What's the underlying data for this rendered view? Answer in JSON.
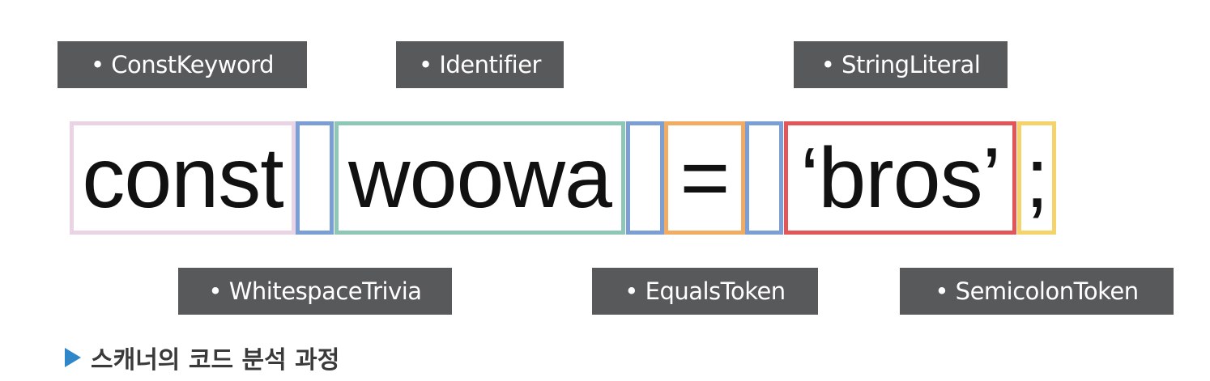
{
  "labels_top": [
    "• ConstKeyword",
    "• Identifier",
    "• StringLiteral"
  ],
  "labels_bottom": [
    "• WhitespaceTrivia",
    "• EqualsToken",
    "• SemicolonToken"
  ],
  "tokens": [
    {
      "text": "const",
      "color": "#e9d3e4",
      "kind": "ConstKeyword"
    },
    {
      "text": "",
      "color": "#7b9fd4",
      "kind": "WhitespaceTrivia"
    },
    {
      "text": "woowa",
      "color": "#8ec7b6",
      "kind": "Identifier"
    },
    {
      "text": "",
      "color": "#7b9fd4",
      "kind": "WhitespaceTrivia"
    },
    {
      "text": "=",
      "color": "#f2ab63",
      "kind": "EqualsToken"
    },
    {
      "text": "",
      "color": "#7b9fd4",
      "kind": "WhitespaceTrivia"
    },
    {
      "text": "‘bros’",
      "color": "#e2565a",
      "kind": "StringLiteral"
    },
    {
      "text": ";",
      "color": "#f4d46a",
      "kind": "SemicolonToken"
    }
  ],
  "caption": {
    "icon": "play-triangle-icon",
    "icon_color": "#2f86c9",
    "text": "스캐너의 코드 분석 과정"
  }
}
